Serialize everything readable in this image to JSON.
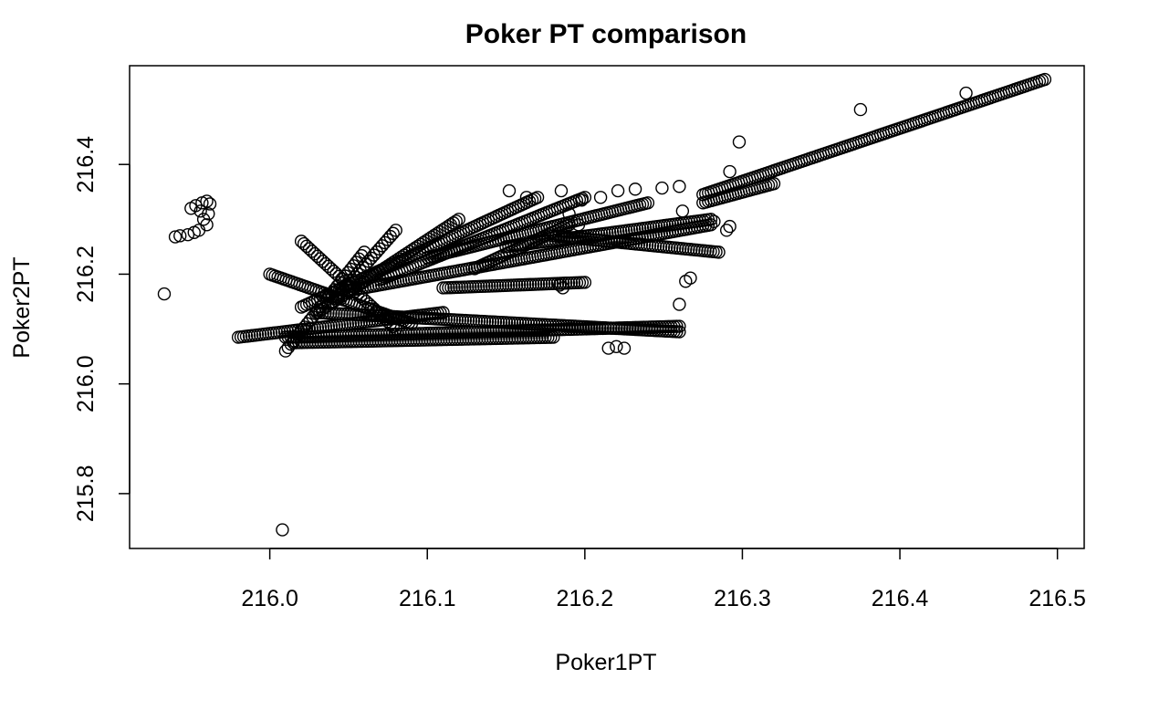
{
  "chart_data": {
    "type": "scatter",
    "title": "Poker PT comparison",
    "xlabel": "Poker1PT",
    "ylabel": "Poker2PT",
    "xlim": [
      215.911,
      216.517
    ],
    "ylim": [
      215.7,
      216.58
    ],
    "xticks": [
      "216.0",
      "216.1",
      "216.2",
      "216.3",
      "216.4",
      "216.5"
    ],
    "yticks": [
      "215.8",
      "216.0",
      "216.2",
      "216.4"
    ],
    "grid": false,
    "marker": "open-circle",
    "colors": {
      "marker": "#000000",
      "axis": "#000000",
      "background": "#ffffff"
    },
    "points": [
      [
        215.933,
        216.164
      ],
      [
        216.008,
        215.734
      ],
      [
        215.94,
        216.268
      ],
      [
        215.943,
        216.27
      ],
      [
        215.948,
        216.272
      ],
      [
        215.952,
        216.276
      ],
      [
        215.955,
        216.28
      ],
      [
        215.95,
        216.32
      ],
      [
        215.953,
        216.325
      ],
      [
        215.957,
        216.33
      ],
      [
        215.96,
        216.333
      ],
      [
        215.962,
        216.328
      ],
      [
        215.958,
        216.3
      ],
      [
        215.96,
        216.29
      ],
      [
        215.961,
        216.31
      ],
      [
        215.956,
        216.315
      ],
      [
        216.152,
        216.352
      ],
      [
        216.163,
        216.34
      ],
      [
        216.185,
        216.352
      ],
      [
        216.198,
        216.335
      ],
      [
        216.21,
        216.34
      ],
      [
        216.221,
        216.352
      ],
      [
        216.232,
        216.355
      ],
      [
        216.249,
        216.357
      ],
      [
        216.26,
        216.36
      ],
      [
        216.26,
        216.145
      ],
      [
        216.264,
        216.187
      ],
      [
        216.267,
        216.193
      ],
      [
        216.262,
        216.315
      ],
      [
        216.282,
        216.296
      ],
      [
        216.29,
        216.28
      ],
      [
        216.292,
        216.287
      ],
      [
        216.292,
        216.387
      ],
      [
        216.298,
        216.441
      ],
      [
        216.375,
        216.5
      ],
      [
        216.442,
        216.53
      ],
      [
        216.184,
        216.18
      ],
      [
        216.186,
        216.175
      ],
      [
        216.19,
        216.31
      ],
      [
        216.196,
        216.29
      ],
      [
        216.215,
        216.065
      ],
      [
        216.22,
        216.068
      ],
      [
        216.225,
        216.065
      ]
    ],
    "segments": [
      {
        "x": [
          215.98,
          216.11
        ],
        "y": [
          216.085,
          216.13
        ]
      },
      {
        "x": [
          216.01,
          216.26
        ],
        "y": [
          216.085,
          216.105
        ]
      },
      {
        "x": [
          216.015,
          216.18
        ],
        "y": [
          216.075,
          216.085
        ]
      },
      {
        "x": [
          216.03,
          216.26
        ],
        "y": [
          216.13,
          216.095
        ]
      },
      {
        "x": [
          216.02,
          216.17
        ],
        "y": [
          216.14,
          216.34
        ]
      },
      {
        "x": [
          216.03,
          216.12
        ],
        "y": [
          216.13,
          216.3
        ]
      },
      {
        "x": [
          216.04,
          216.08
        ],
        "y": [
          216.15,
          216.28
        ]
      },
      {
        "x": [
          216.05,
          216.28
        ],
        "y": [
          216.17,
          216.29
        ]
      },
      {
        "x": [
          216.07,
          216.2
        ],
        "y": [
          216.19,
          216.34
        ]
      },
      {
        "x": [
          216.1,
          216.24
        ],
        "y": [
          216.23,
          216.33
        ]
      },
      {
        "x": [
          216.15,
          216.28
        ],
        "y": [
          216.25,
          216.3
        ]
      },
      {
        "x": [
          216.18,
          216.285
        ],
        "y": [
          216.27,
          216.24
        ]
      },
      {
        "x": [
          216.11,
          216.2
        ],
        "y": [
          216.175,
          216.185
        ]
      },
      {
        "x": [
          216.13,
          216.19
        ],
        "y": [
          216.21,
          216.29
        ]
      },
      {
        "x": [
          216.275,
          216.492
        ],
        "y": [
          216.345,
          216.555
        ]
      },
      {
        "x": [
          216.275,
          216.32
        ],
        "y": [
          216.33,
          216.365
        ]
      },
      {
        "x": [
          216.01,
          216.06
        ],
        "y": [
          216.06,
          216.24
        ]
      },
      {
        "x": [
          216.0,
          216.09
        ],
        "y": [
          216.2,
          216.11
        ]
      },
      {
        "x": [
          216.02,
          216.08
        ],
        "y": [
          216.26,
          216.1
        ]
      }
    ]
  }
}
